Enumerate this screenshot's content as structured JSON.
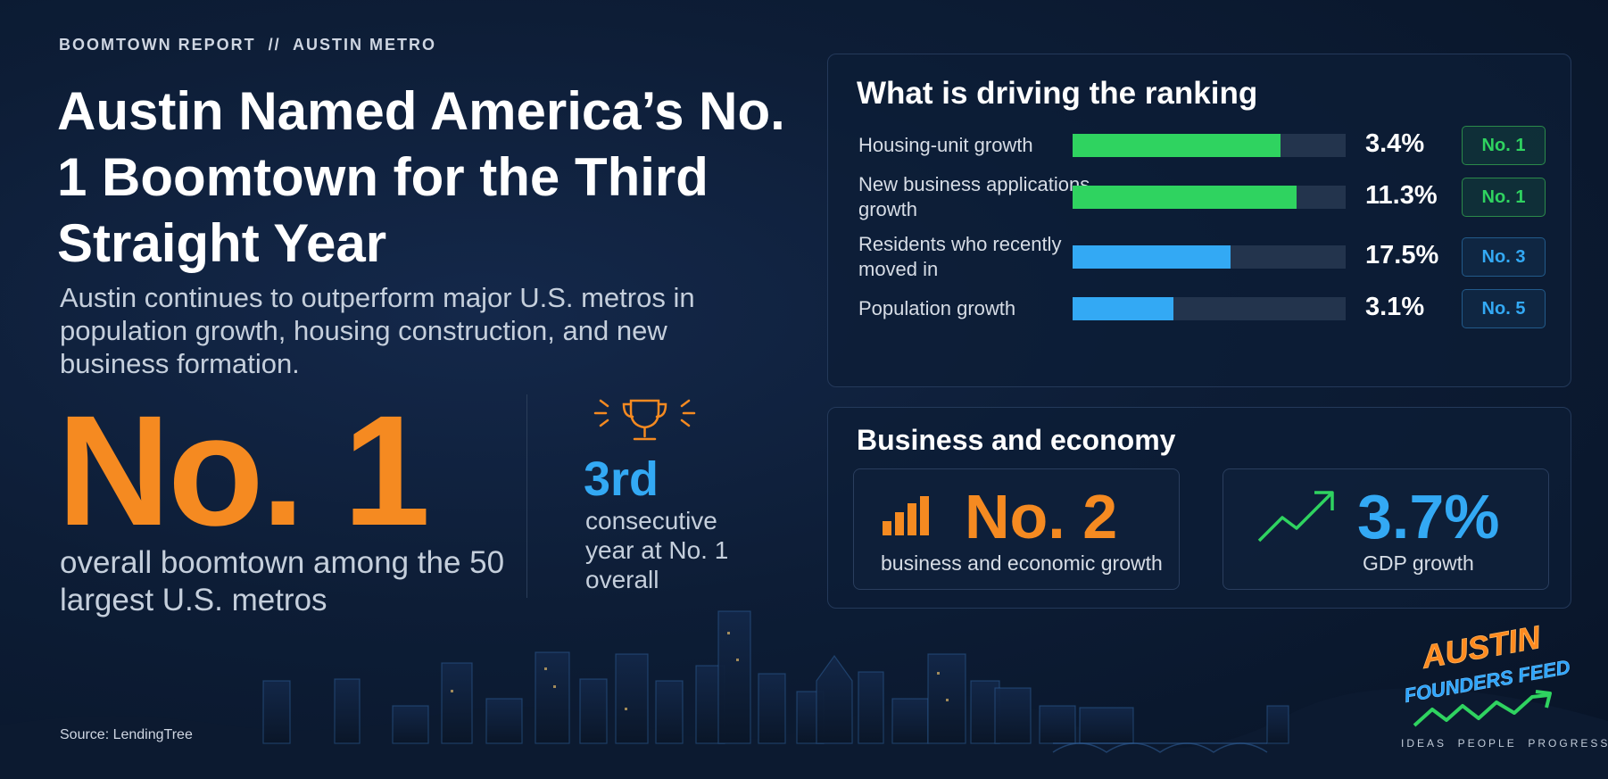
{
  "header": {
    "kicker": "BOOMTOWN REPORT  //  AUSTIN METRO",
    "title": "Austin Named America’s No. 1 Boomtown for the Third Straight Year",
    "subtitle": "Austin continues to outperform major U.S. metros in population growth, housing construction, and new business formation."
  },
  "headline_stat": {
    "value": "No. 1",
    "description": "overall boomtown among the 50 largest U.S. metros"
  },
  "streak": {
    "value": "3rd",
    "description": "consecutive year at No. 1 overall",
    "icon": "trophy-icon"
  },
  "colors": {
    "orange": "#f58a21",
    "green": "#2fd360",
    "blue": "#33a9f4",
    "background": "#0b1a2f"
  },
  "chart_data": {
    "type": "bar",
    "title": "What is driving the ranking",
    "bars": [
      {
        "label": "Housing-unit growth",
        "value_label": "3.4%",
        "fill": 0.76,
        "rank": "No. 1",
        "color": "green"
      },
      {
        "label": "New business applications growth",
        "value_label": "11.3%",
        "fill": 0.82,
        "rank": "No. 1",
        "color": "green"
      },
      {
        "label": "Residents who recently moved in",
        "value_label": "17.5%",
        "fill": 0.58,
        "rank": "No. 3",
        "color": "blue"
      },
      {
        "label": "Population growth",
        "value_label": "3.1%",
        "fill": 0.37,
        "rank": "No. 5",
        "color": "blue"
      }
    ]
  },
  "business": {
    "title": "Business and economy",
    "cards": [
      {
        "value": "No. 2",
        "description": "business and economic growth",
        "icon": "bar-chart-icon"
      },
      {
        "value": "3.7%",
        "description": "GDP growth",
        "icon": "trend-up-arrow-icon"
      }
    ]
  },
  "footer": {
    "source": "Source: LendingTree",
    "logo_line1": "AUSTIN",
    "logo_line2": "FOUNDERS FEED",
    "tagline": "IDEAS  PEOPLE  PROGRESS"
  }
}
